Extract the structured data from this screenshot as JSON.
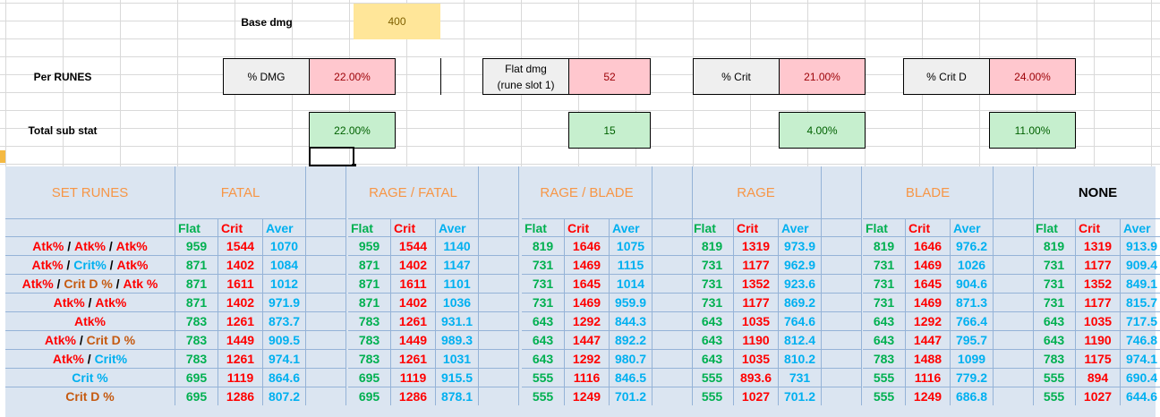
{
  "top": {
    "base_dmg_label": "Base dmg",
    "base_dmg_value": "400",
    "per_runes_label": "Per RUNES",
    "total_sub_stat_label": "Total sub stat",
    "dmg_label": "% DMG",
    "dmg_per_rune": "22.00%",
    "dmg_total": "22.00%",
    "flat_label_1": "Flat dmg",
    "flat_label_2": "(rune slot 1)",
    "flat_per_rune": "52",
    "flat_total": "15",
    "crit_label": "% Crit",
    "crit_per_rune": "21.00%",
    "crit_total": "4.00%",
    "critd_label": "% Crit D",
    "critd_per_rune": "24.00%",
    "critd_total": "11.00%"
  },
  "table": {
    "set_runes_label": "SET RUNES",
    "groups": [
      "FATAL",
      "RAGE / FATAL",
      "RAGE / BLADE",
      "RAGE",
      "BLADE",
      "NONE"
    ],
    "subheaders": [
      "Flat",
      "Crit",
      "Aver"
    ],
    "rows": [
      {
        "label": [
          [
            "Atk%",
            "red"
          ],
          [
            " / ",
            "slash"
          ],
          [
            "Atk%",
            "red"
          ],
          [
            " / ",
            "slash"
          ],
          [
            "Atk%",
            "red"
          ]
        ],
        "values": [
          [
            "959",
            "1544",
            "1070"
          ],
          [
            "959",
            "1544",
            "1140"
          ],
          [
            "819",
            "1646",
            "1075"
          ],
          [
            "819",
            "1319",
            "973.9"
          ],
          [
            "819",
            "1646",
            "976.2"
          ],
          [
            "819",
            "1319",
            "913.9"
          ]
        ]
      },
      {
        "label": [
          [
            "Atk%",
            "red"
          ],
          [
            " / ",
            "slash"
          ],
          [
            "Crit%",
            "cyan"
          ],
          [
            " / ",
            "slash"
          ],
          [
            "Atk%",
            "red"
          ]
        ],
        "values": [
          [
            "871",
            "1402",
            "1084"
          ],
          [
            "871",
            "1402",
            "1147"
          ],
          [
            "731",
            "1469",
            "1115"
          ],
          [
            "731",
            "1177",
            "962.9"
          ],
          [
            "731",
            "1469",
            "1026"
          ],
          [
            "731",
            "1177",
            "909.4"
          ]
        ]
      },
      {
        "label": [
          [
            "Atk%",
            "red"
          ],
          [
            " / ",
            "slash"
          ],
          [
            "Crit D %",
            "brown"
          ],
          [
            " / ",
            "slash"
          ],
          [
            "Atk %",
            "red"
          ]
        ],
        "values": [
          [
            "871",
            "1611",
            "1012"
          ],
          [
            "871",
            "1611",
            "1101"
          ],
          [
            "731",
            "1645",
            "1014"
          ],
          [
            "731",
            "1352",
            "923.6"
          ],
          [
            "731",
            "1645",
            "904.6"
          ],
          [
            "731",
            "1352",
            "849.1"
          ]
        ]
      },
      {
        "label": [
          [
            "Atk%",
            "red"
          ],
          [
            " / ",
            "slash"
          ],
          [
            "Atk%",
            "red"
          ]
        ],
        "values": [
          [
            "871",
            "1402",
            "971.9"
          ],
          [
            "871",
            "1402",
            "1036"
          ],
          [
            "731",
            "1469",
            "959.9"
          ],
          [
            "731",
            "1177",
            "869.2"
          ],
          [
            "731",
            "1469",
            "871.3"
          ],
          [
            "731",
            "1177",
            "815.7"
          ]
        ]
      },
      {
        "label": [
          [
            "Atk%",
            "red"
          ]
        ],
        "values": [
          [
            "783",
            "1261",
            "873.7"
          ],
          [
            "783",
            "1261",
            "931.1"
          ],
          [
            "643",
            "1292",
            "844.3"
          ],
          [
            "643",
            "1035",
            "764.6"
          ],
          [
            "643",
            "1292",
            "766.4"
          ],
          [
            "643",
            "1035",
            "717.5"
          ]
        ]
      },
      {
        "label": [
          [
            "Atk%",
            "red"
          ],
          [
            " / ",
            "slash"
          ],
          [
            "Crit D %",
            "brown"
          ]
        ],
        "values": [
          [
            "783",
            "1449",
            "909.5"
          ],
          [
            "783",
            "1449",
            "989.3"
          ],
          [
            "643",
            "1447",
            "892.2"
          ],
          [
            "643",
            "1190",
            "812.4"
          ],
          [
            "643",
            "1447",
            "795.7"
          ],
          [
            "643",
            "1190",
            "746.8"
          ]
        ]
      },
      {
        "label": [
          [
            "Atk%",
            "red"
          ],
          [
            " / ",
            "slash"
          ],
          [
            "Crit%",
            "cyan"
          ]
        ],
        "values": [
          [
            "783",
            "1261",
            "974.1"
          ],
          [
            "783",
            "1261",
            "1031"
          ],
          [
            "643",
            "1292",
            "980.7"
          ],
          [
            "643",
            "1035",
            "810.2"
          ],
          [
            "783",
            "1488",
            "1099"
          ],
          [
            "783",
            "1175",
            "974.1"
          ]
        ]
      },
      {
        "label": [
          [
            "Crit %",
            "cyan"
          ]
        ],
        "values": [
          [
            "695",
            "1119",
            "864.6"
          ],
          [
            "695",
            "1119",
            "915.5"
          ],
          [
            "555",
            "1116",
            "846.5"
          ],
          [
            "555",
            "893.6",
            "731"
          ],
          [
            "555",
            "1116",
            "779.2"
          ],
          [
            "555",
            "894",
            "690.4"
          ]
        ]
      },
      {
        "label": [
          [
            "Crit D %",
            "brown"
          ]
        ],
        "values": [
          [
            "695",
            "1286",
            "807.2"
          ],
          [
            "695",
            "1286",
            "878.1"
          ],
          [
            "555",
            "1249",
            "701.2"
          ],
          [
            "555",
            "1027",
            "701.2"
          ],
          [
            "555",
            "1249",
            "686.8"
          ],
          [
            "555",
            "1027",
            "644.6"
          ]
        ]
      }
    ]
  },
  "colors": {
    "flat": "#00b050",
    "crit": "#ff0000",
    "aver": "#00b0f0",
    "header": "#f79646",
    "table_bg": "#dbe5f1"
  }
}
